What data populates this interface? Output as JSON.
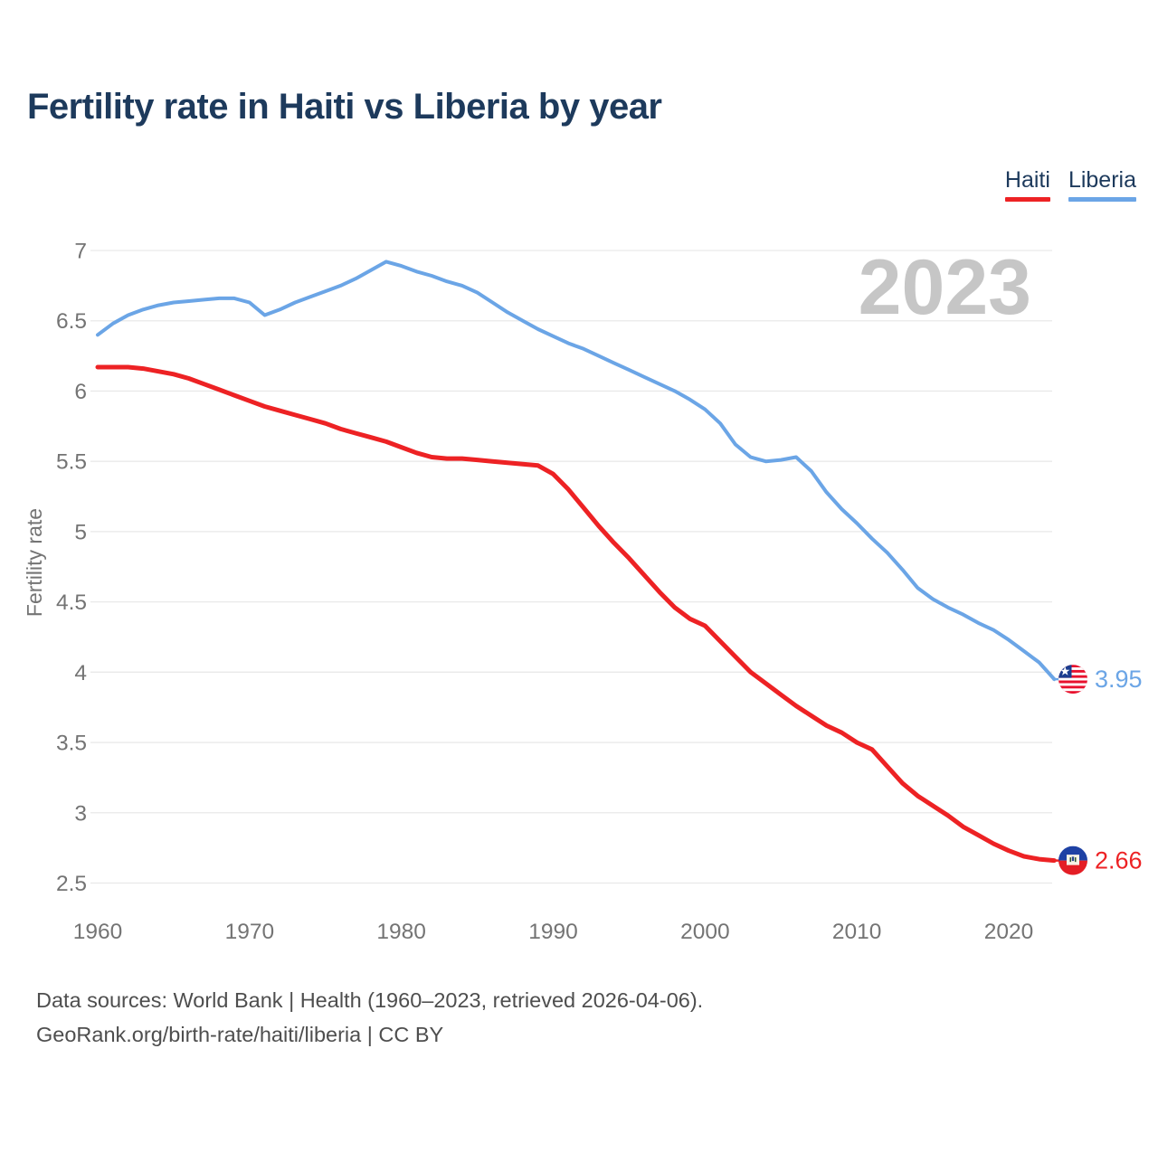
{
  "title": "Fertility rate in Haiti vs Liberia by year",
  "watermark": "2023",
  "legend": {
    "items": [
      {
        "label": "Haiti",
        "color": "#ed2224"
      },
      {
        "label": "Liberia",
        "color": "#6ba5e6"
      }
    ]
  },
  "footer": {
    "line1": "Data sources: World Bank | Health (1960–2023, retrieved 2026-04-06).",
    "line2": "GeoRank.org/birth-rate/haiti/liberia | CC BY"
  },
  "chart_data": {
    "type": "line",
    "title": "Fertility rate in Haiti vs Liberia by year",
    "xlabel": "",
    "ylabel": "Fertility rate",
    "xlim": [
      1960,
      2023
    ],
    "ylim": [
      2.5,
      7
    ],
    "grid": true,
    "legend_position": "top-right",
    "x_ticks": [
      1960,
      1970,
      1980,
      1990,
      2000,
      2010,
      2020
    ],
    "y_ticks": [
      7,
      6.5,
      6,
      5.5,
      5,
      4.5,
      4,
      3.5,
      3,
      2.5
    ],
    "years": [
      1960,
      1961,
      1962,
      1963,
      1964,
      1965,
      1966,
      1967,
      1968,
      1969,
      1970,
      1971,
      1972,
      1973,
      1974,
      1975,
      1976,
      1977,
      1978,
      1979,
      1980,
      1981,
      1982,
      1983,
      1984,
      1985,
      1986,
      1987,
      1988,
      1989,
      1990,
      1991,
      1992,
      1993,
      1994,
      1995,
      1996,
      1997,
      1998,
      1999,
      2000,
      2001,
      2002,
      2003,
      2004,
      2005,
      2006,
      2007,
      2008,
      2009,
      2010,
      2011,
      2012,
      2013,
      2014,
      2015,
      2016,
      2017,
      2018,
      2019,
      2020,
      2021,
      2022,
      2023
    ],
    "series": [
      {
        "name": "Haiti",
        "color": "#ed2224",
        "line_width": 5,
        "flag": "haiti",
        "end_label": "2.66",
        "values": [
          6.17,
          6.17,
          6.17,
          6.16,
          6.14,
          6.12,
          6.09,
          6.05,
          6.01,
          5.97,
          5.93,
          5.89,
          5.86,
          5.83,
          5.8,
          5.77,
          5.73,
          5.7,
          5.67,
          5.64,
          5.6,
          5.56,
          5.53,
          5.52,
          5.52,
          5.51,
          5.5,
          5.49,
          5.48,
          5.47,
          5.41,
          5.3,
          5.17,
          5.04,
          4.92,
          4.81,
          4.69,
          4.57,
          4.46,
          4.38,
          4.33,
          4.22,
          4.11,
          4.0,
          3.92,
          3.84,
          3.76,
          3.69,
          3.62,
          3.57,
          3.5,
          3.45,
          3.33,
          3.21,
          3.12,
          3.05,
          2.98,
          2.9,
          2.84,
          2.78,
          2.73,
          2.69,
          2.67,
          2.66
        ]
      },
      {
        "name": "Liberia",
        "color": "#6ba5e6",
        "line_width": 4,
        "flag": "liberia",
        "end_label": "3.95",
        "values": [
          6.4,
          6.48,
          6.54,
          6.58,
          6.61,
          6.63,
          6.64,
          6.65,
          6.66,
          6.66,
          6.63,
          6.54,
          6.58,
          6.63,
          6.67,
          6.71,
          6.75,
          6.8,
          6.86,
          6.92,
          6.89,
          6.85,
          6.82,
          6.78,
          6.75,
          6.7,
          6.63,
          6.56,
          6.5,
          6.44,
          6.39,
          6.34,
          6.3,
          6.25,
          6.2,
          6.15,
          6.1,
          6.05,
          6.0,
          5.94,
          5.87,
          5.77,
          5.62,
          5.53,
          5.5,
          5.51,
          5.53,
          5.43,
          5.28,
          5.16,
          5.06,
          4.95,
          4.85,
          4.73,
          4.6,
          4.52,
          4.46,
          4.41,
          4.35,
          4.3,
          4.23,
          4.15,
          4.07,
          3.95
        ]
      }
    ]
  }
}
